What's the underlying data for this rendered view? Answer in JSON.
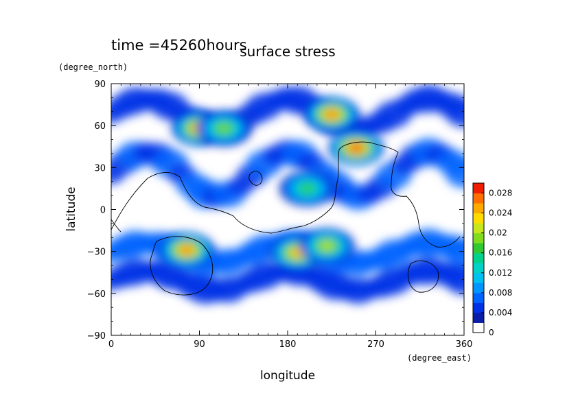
{
  "chart_data": {
    "type": "heatmap",
    "title": "surface stress",
    "time_label": "time =45260hours",
    "xlabel": "longitude",
    "ylabel": "latitude",
    "x_unit": "(degree_east)",
    "y_unit": "(degree_north)",
    "xlim": [
      0,
      360
    ],
    "ylim": [
      -90,
      90
    ],
    "xticks": [
      "0",
      "90",
      "180",
      "270",
      "360"
    ],
    "yticks": [
      "90",
      "60",
      "30",
      "0",
      "−30",
      "−60",
      "−90"
    ],
    "colorbar": {
      "ticks": [
        "0.028",
        "0.024",
        "0.02",
        "0.016",
        "0.012",
        "0.008",
        "0.004",
        "0"
      ],
      "levels": [
        0,
        0.002,
        0.004,
        0.006,
        0.008,
        0.01,
        0.012,
        0.014,
        0.016,
        0.018,
        0.02,
        0.022,
        0.024,
        0.026,
        0.028
      ],
      "colors": [
        "#ffffff",
        "#0a1ea8",
        "#0032e6",
        "#0064ff",
        "#0096ff",
        "#00c0f0",
        "#00d2c8",
        "#00d28c",
        "#32c832",
        "#82dc1e",
        "#c8e61e",
        "#ffdc00",
        "#ffaa00",
        "#ff6e00",
        "#f01e00"
      ]
    },
    "hotspots": [
      {
        "lon": 90,
        "lat": 58,
        "value": 0.026
      },
      {
        "lon": 115,
        "lat": 58,
        "value": 0.018
      },
      {
        "lon": 225,
        "lat": 68,
        "value": 0.026
      },
      {
        "lon": 250,
        "lat": 44,
        "value": 0.028
      },
      {
        "lon": 77,
        "lat": -29,
        "value": 0.026
      },
      {
        "lon": 190,
        "lat": -31,
        "value": 0.024
      },
      {
        "lon": 220,
        "lat": -26,
        "value": 0.02
      },
      {
        "lon": 200,
        "lat": 15,
        "value": 0.016
      }
    ]
  }
}
